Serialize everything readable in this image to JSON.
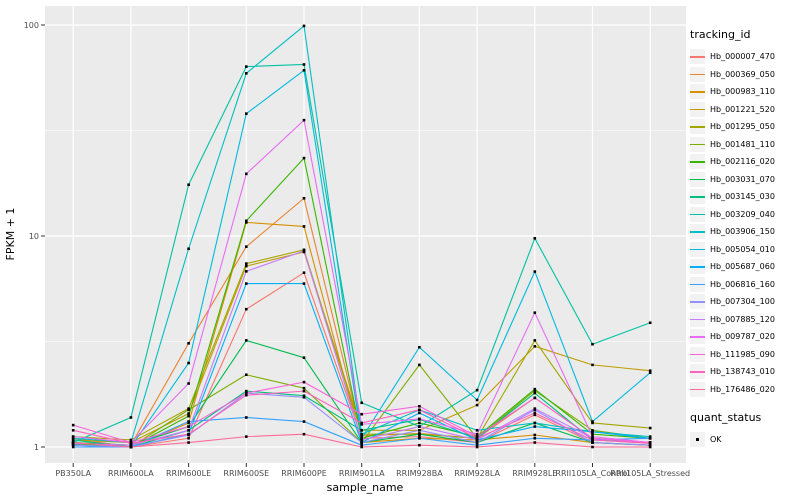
{
  "colors": {
    "panel_bg": "#EBEBEB",
    "grid": "#FFFFFF",
    "point": "#000000",
    "tick_mark": "#333333",
    "tick_text": "#4D4D4D",
    "legend_key_bg": "#F2F2F2"
  },
  "legend": {
    "title": "tracking_id"
  },
  "quant_legend": {
    "title": "quant_status",
    "items": [
      "OK"
    ]
  },
  "chart_data": {
    "type": "line",
    "title": "",
    "xlabel": "sample_name",
    "ylabel": "FPKM + 1",
    "y_scale": "log10",
    "y_ticks": [
      1,
      10,
      100
    ],
    "y_minor_ticks": [
      3.162,
      31.62
    ],
    "ylim": [
      0.93,
      105
    ],
    "grid": true,
    "legend_position": "right",
    "point_shape": "square",
    "point_color": "#000000",
    "x_categories": [
      "PB350LA",
      "RRIM600LA",
      "RRIM600LE",
      "RRIM600SE",
      "RRIM600PE",
      "RRIM901LA",
      "RRIM928BA",
      "RRIM928LA",
      "RRIM928LE",
      "RRII105LA_Control",
      "RRII105LA_Stressed"
    ],
    "series": [
      {
        "name": "Hb_000007_470",
        "color": "#F8766D",
        "values": [
          1.1,
          1.0,
          1.1,
          4.5,
          6.7,
          1.1,
          1.12,
          1.05,
          1.42,
          1.05,
          1.02
        ]
      },
      {
        "name": "Hb_000369_050",
        "color": "#EA8331",
        "values": [
          1.05,
          1.02,
          3.1,
          8.9,
          15.1,
          1.13,
          1.16,
          1.1,
          1.71,
          1.1,
          1.05
        ]
      },
      {
        "name": "Hb_000983_110",
        "color": "#D89000",
        "values": [
          1.04,
          1.0,
          1.3,
          11.6,
          11.1,
          1.05,
          1.1,
          1.08,
          1.14,
          1.05,
          1.02
        ]
      },
      {
        "name": "Hb_001221_520",
        "color": "#C09B00",
        "values": [
          1.08,
          1.05,
          1.44,
          7.2,
          8.4,
          1.2,
          1.2,
          1.58,
          3.0,
          2.45,
          2.3
        ]
      },
      {
        "name": "Hb_001295_050",
        "color": "#A3A500",
        "values": [
          1.12,
          1.08,
          1.52,
          7.4,
          8.6,
          1.15,
          1.15,
          1.1,
          3.2,
          1.3,
          1.23
        ]
      },
      {
        "name": "Hb_001481_110",
        "color": "#7CAE00",
        "values": [
          1.05,
          1.0,
          1.5,
          2.2,
          1.9,
          1.05,
          2.45,
          1.1,
          1.85,
          1.2,
          1.1
        ]
      },
      {
        "name": "Hb_002116_020",
        "color": "#39B600",
        "values": [
          1.03,
          1.0,
          1.4,
          11.8,
          23.4,
          1.1,
          1.3,
          1.12,
          1.88,
          1.15,
          1.1
        ]
      },
      {
        "name": "Hb_003031_070",
        "color": "#00BB4E",
        "values": [
          1.05,
          1.02,
          1.25,
          3.2,
          2.65,
          1.05,
          1.15,
          1.05,
          1.3,
          1.05,
          1.02
        ]
      },
      {
        "name": "Hb_003145_030",
        "color": "#00BF7D",
        "values": [
          1.08,
          1.0,
          1.2,
          1.84,
          1.75,
          1.2,
          1.35,
          1.1,
          1.8,
          1.08,
          1.05
        ]
      },
      {
        "name": "Hb_003209_040",
        "color": "#00C1A3",
        "values": [
          1.05,
          1.38,
          17.5,
          63.5,
          65.0,
          1.62,
          1.25,
          1.86,
          9.75,
          3.07,
          3.88
        ]
      },
      {
        "name": "Hb_003906_150",
        "color": "#00BFC4",
        "values": [
          1.1,
          1.05,
          8.7,
          59.0,
          99.0,
          1.15,
          1.5,
          1.2,
          1.3,
          1.18,
          1.12
        ]
      },
      {
        "name": "Hb_005054_010",
        "color": "#00BADE",
        "values": [
          1.02,
          1.0,
          2.5,
          38.0,
          61.0,
          1.1,
          2.97,
          1.67,
          6.78,
          1.32,
          2.25
        ]
      },
      {
        "name": "Hb_005687_060",
        "color": "#00B0F6",
        "values": [
          1.02,
          1.0,
          1.15,
          5.95,
          5.95,
          1.05,
          1.45,
          1.08,
          1.25,
          1.18,
          1.1
        ]
      },
      {
        "name": "Hb_006816_160",
        "color": "#35A2FF",
        "values": [
          1.0,
          1.0,
          1.32,
          1.38,
          1.32,
          1.02,
          1.1,
          1.02,
          1.1,
          1.08,
          1.1
        ]
      },
      {
        "name": "Hb_007304_100",
        "color": "#9590FF",
        "values": [
          1.02,
          1.0,
          1.14,
          1.8,
          1.72,
          1.05,
          1.2,
          1.05,
          1.5,
          1.05,
          1.02
        ]
      },
      {
        "name": "Hb_007885_120",
        "color": "#C77CFF",
        "values": [
          1.04,
          1.02,
          1.2,
          6.8,
          8.5,
          1.08,
          1.25,
          1.08,
          1.52,
          1.1,
          1.05
        ]
      },
      {
        "name": "Hb_009787_020",
        "color": "#E76BF3",
        "values": [
          1.12,
          1.05,
          2.0,
          19.7,
          35.4,
          1.28,
          1.36,
          1.15,
          4.33,
          1.12,
          1.05
        ]
      },
      {
        "name": "Hb_111985_090",
        "color": "#FA62DB",
        "values": [
          1.27,
          1.05,
          1.25,
          1.8,
          2.03,
          1.43,
          1.56,
          1.12,
          1.71,
          1.1,
          1.05
        ]
      },
      {
        "name": "Hb_138743_010",
        "color": "#FF62BC",
        "values": [
          1.2,
          1.04,
          1.15,
          1.76,
          1.84,
          1.3,
          1.5,
          1.1,
          1.45,
          1.08,
          1.04
        ]
      },
      {
        "name": "Hb_176486_020",
        "color": "#FF6A98",
        "values": [
          1.05,
          1.0,
          1.05,
          1.12,
          1.15,
          1.0,
          1.02,
          1.0,
          1.05,
          1.0,
          1.0
        ]
      }
    ]
  }
}
